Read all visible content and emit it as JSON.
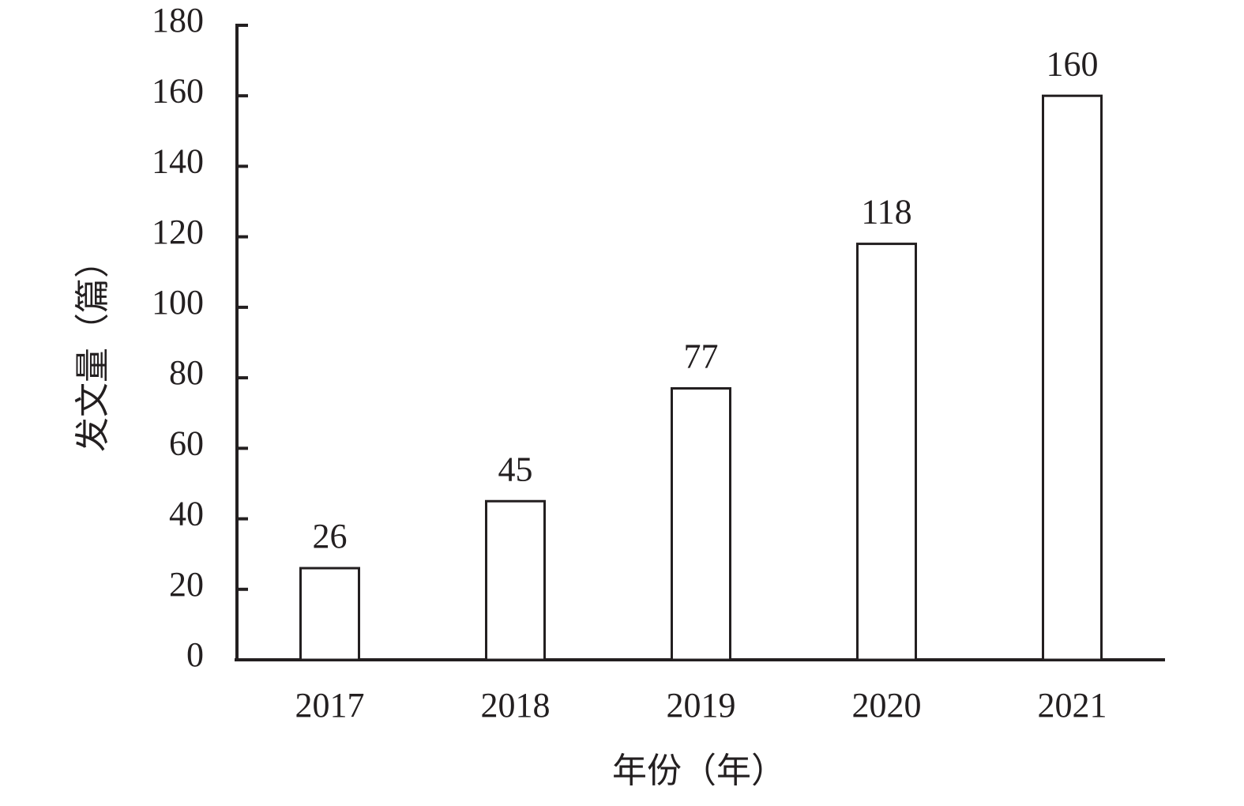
{
  "chart_data": {
    "type": "bar",
    "x_label": "年份（年）",
    "y_label": "发文量（篇）",
    "categories": [
      "2017",
      "2018",
      "2019",
      "2020",
      "2021"
    ],
    "values": [
      26,
      45,
      77,
      118,
      160
    ],
    "color": "#ffffff",
    "edge_color": "#231f20",
    "ylim": [
      0,
      180
    ],
    "yticks": [
      0,
      20,
      40,
      60,
      80,
      100,
      120,
      140,
      160,
      180
    ],
    "grid": false
  }
}
